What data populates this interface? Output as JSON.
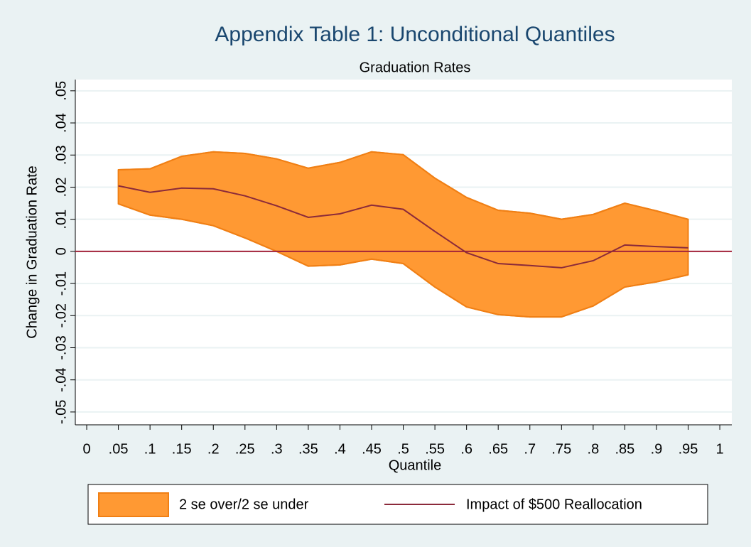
{
  "chart_data": {
    "type": "band-line",
    "title": "Appendix Table 1: Unconditional Quantiles",
    "subtitle": "Graduation Rates",
    "x_label": "Quantile",
    "y_label": "Change in Graduation Rate",
    "x": [
      0.05,
      0.1,
      0.15,
      0.2,
      0.25,
      0.3,
      0.35,
      0.4,
      0.45,
      0.5,
      0.55,
      0.6,
      0.65,
      0.7,
      0.75,
      0.8,
      0.85,
      0.9,
      0.95
    ],
    "series": [
      {
        "name": "2 se over/2 se under",
        "color": "#ff9933",
        "edge": "#f07f14",
        "upper": [
          0.0254,
          0.0257,
          0.0296,
          0.031,
          0.0305,
          0.0288,
          0.0259,
          0.0277,
          0.031,
          0.0301,
          0.0228,
          0.0168,
          0.0128,
          0.0119,
          0.01,
          0.0115,
          0.015,
          0.0126,
          0.01
        ],
        "lower": [
          0.0148,
          0.0113,
          0.01,
          0.008,
          0.0042,
          0,
          -0.0046,
          -0.0042,
          -0.0024,
          -0.0038,
          -0.0111,
          -0.0173,
          -0.0197,
          -0.0204,
          -0.0204,
          -0.017,
          -0.0111,
          -0.0095,
          -0.0073
        ]
      },
      {
        "name": "Impact of $500 Reallocation",
        "color": "#8b2a3a",
        "values": [
          0.0204,
          0.0184,
          0.0197,
          0.0195,
          0.0173,
          0.0142,
          0.0106,
          0.0117,
          0.0144,
          0.0131,
          0.0062,
          -0.0004,
          -0.0038,
          -0.0044,
          -0.0051,
          -0.0029,
          0.002,
          0.0015,
          0.0011
        ]
      }
    ],
    "yline": 0,
    "yline_color": "#a3233a",
    "xlim": [
      -0.018,
      1.019
    ],
    "ylim": [
      -0.054,
      0.0535
    ],
    "xticks": [
      0,
      {
        "value": 0.05,
        "label": ".05"
      },
      {
        "value": 0.1,
        "label": ".1"
      },
      {
        "value": 0.15,
        "label": ".15"
      },
      {
        "value": 0.2,
        "label": ".2"
      },
      {
        "value": 0.25,
        "label": ".25"
      },
      {
        "value": 0.3,
        "label": ".3"
      },
      {
        "value": 0.35,
        "label": ".35"
      },
      {
        "value": 0.4,
        "label": ".4"
      },
      {
        "value": 0.45,
        "label": ".45"
      },
      {
        "value": 0.5,
        "label": ".5"
      },
      {
        "value": 0.55,
        "label": ".55"
      },
      {
        "value": 0.6,
        "label": ".6"
      },
      {
        "value": 0.65,
        "label": ".65"
      },
      {
        "value": 0.7,
        "label": ".7"
      },
      {
        "value": 0.75,
        "label": ".75"
      },
      {
        "value": 0.8,
        "label": ".8"
      },
      {
        "value": 0.85,
        "label": ".85"
      },
      {
        "value": 0.9,
        "label": ".9"
      },
      {
        "value": 0.95,
        "label": ".95"
      },
      1
    ],
    "yticks": [
      {
        "value": -0.05,
        "label": "-.05"
      },
      {
        "value": -0.04,
        "label": "-.04"
      },
      {
        "value": -0.03,
        "label": "-.03"
      },
      {
        "value": -0.02,
        "label": "-.02"
      },
      {
        "value": -0.01,
        "label": "-.01"
      },
      0,
      {
        "value": 0.01,
        "label": ".01"
      },
      {
        "value": 0.02,
        "label": ".02"
      },
      {
        "value": 0.03,
        "label": ".03"
      },
      {
        "value": 0.04,
        "label": ".04"
      },
      {
        "value": 0.05,
        "label": ".05"
      }
    ],
    "grid": true,
    "legend": "bottom"
  }
}
